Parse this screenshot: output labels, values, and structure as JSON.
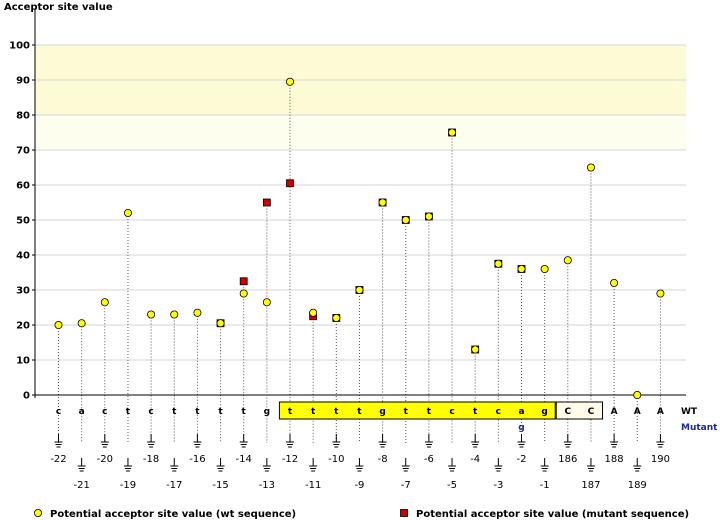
{
  "chart_data": {
    "type": "scatter",
    "ylabel": "Acceptor site value",
    "ylim": [
      0,
      100
    ],
    "yticks": [
      0,
      10,
      20,
      30,
      40,
      50,
      60,
      70,
      80,
      90,
      100
    ],
    "highlight_bands": [
      {
        "from": 80,
        "to": 100,
        "color": "#fdfbd6"
      },
      {
        "from": 70,
        "to": 80,
        "color": "#fefeee"
      }
    ],
    "row_labels": {
      "wt": "WT",
      "mutant": "Mutant"
    },
    "positions": [
      {
        "pos": "-22",
        "base": "c",
        "wt": 20
      },
      {
        "pos": "-21",
        "base": "a",
        "wt": 20.5
      },
      {
        "pos": "-20",
        "base": "c",
        "wt": 26.5
      },
      {
        "pos": "-19",
        "base": "t",
        "wt": 52
      },
      {
        "pos": "-18",
        "base": "c",
        "wt": 23
      },
      {
        "pos": "-17",
        "base": "t",
        "wt": 23
      },
      {
        "pos": "-16",
        "base": "t",
        "wt": 23.5
      },
      {
        "pos": "-15",
        "base": "t",
        "wt": 20.5,
        "mut": 20.5
      },
      {
        "pos": "-14",
        "base": "t",
        "wt": 29,
        "mut": 32.5
      },
      {
        "pos": "-13",
        "base": "g",
        "wt": 26.5,
        "mut": 55
      },
      {
        "pos": "-12",
        "base": "t",
        "wt": 89.5,
        "mut": 60.5
      },
      {
        "pos": "-11",
        "base": "t",
        "wt": 23.5,
        "mut": 22.5
      },
      {
        "pos": "-10",
        "base": "t",
        "wt": 22,
        "mut": 22
      },
      {
        "pos": "-9",
        "base": "t",
        "wt": 30,
        "mut": 30
      },
      {
        "pos": "-8",
        "base": "g",
        "wt": 55,
        "mut": 55
      },
      {
        "pos": "-7",
        "base": "t",
        "wt": 50,
        "mut": 50
      },
      {
        "pos": "-6",
        "base": "t",
        "wt": 51,
        "mut": 51
      },
      {
        "pos": "-5",
        "base": "c",
        "wt": 75,
        "mut": 75
      },
      {
        "pos": "-4",
        "base": "t",
        "wt": 13,
        "mut": 13
      },
      {
        "pos": "-3",
        "base": "c",
        "wt": 37.5,
        "mut": 37.5
      },
      {
        "pos": "-2",
        "base": "a",
        "wt": 36,
        "mut": 36,
        "mut_base": "g"
      },
      {
        "pos": "-1",
        "base": "g",
        "wt": 36
      },
      {
        "pos": "186",
        "base": "C",
        "wt": 38.5
      },
      {
        "pos": "187",
        "base": "C",
        "wt": 65
      },
      {
        "pos": "188",
        "base": "A",
        "wt": 32
      },
      {
        "pos": "189",
        "base": "A",
        "wt": 0
      },
      {
        "pos": "190",
        "base": "A",
        "wt": 29
      }
    ],
    "yellow_box": {
      "from_index": 10,
      "to_index": 21,
      "color": "#ffff00"
    },
    "exon_box": {
      "from_index": 22,
      "to_index": 23,
      "color": "#fffbe8"
    },
    "legend": [
      {
        "marker": "circle",
        "color": "#ffff00",
        "label": "Potential acceptor site value (wt sequence)"
      },
      {
        "marker": "square",
        "color": "#cc0000",
        "label": "Potential acceptor site value (mutant sequence)"
      }
    ]
  }
}
